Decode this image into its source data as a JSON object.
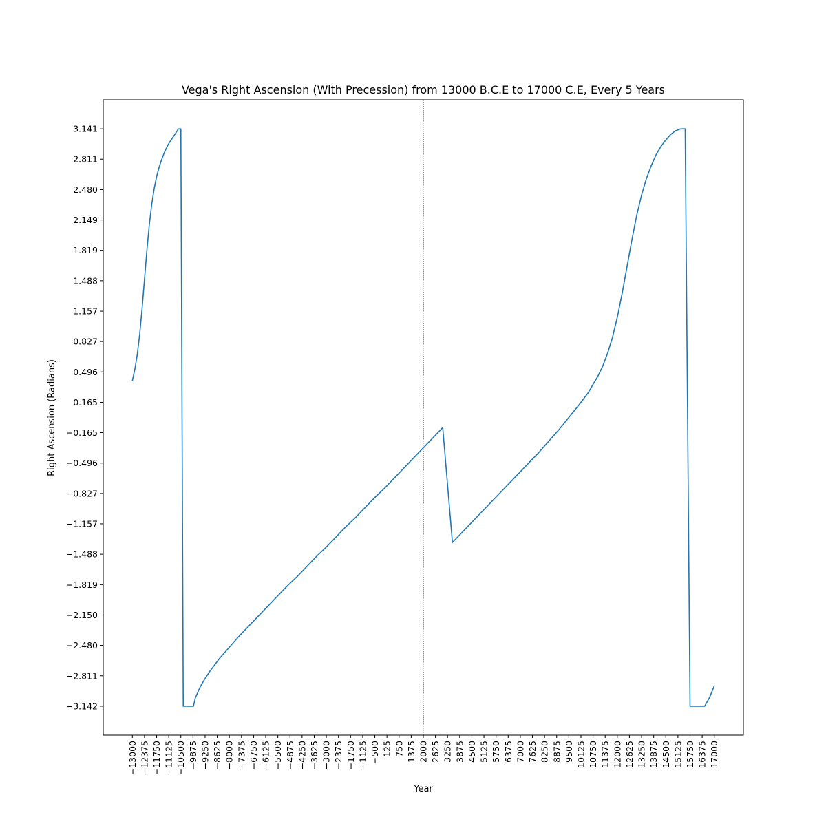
{
  "chart_data": {
    "type": "line",
    "title": "Vega's Right Ascension (With Precession) from 13000 B.C.E to 17000 C.E, Every 5 Years",
    "xlabel": "Year",
    "ylabel": "Right Ascension (Radians)",
    "xlim": [
      -14500,
      18500
    ],
    "ylim": [
      -3.457,
      3.457
    ],
    "grid": false,
    "line_color": "#1f77b4",
    "reference_line": {
      "x": 2000,
      "color": "#000000",
      "style": "dotted"
    },
    "x_ticks": [
      -13000,
      -12375,
      -11750,
      -11125,
      -10500,
      -9875,
      -9250,
      -8625,
      -8000,
      -7375,
      -6750,
      -6125,
      -5500,
      -4875,
      -4250,
      -3625,
      -3000,
      -2375,
      -1750,
      -1125,
      -500,
      125,
      750,
      1375,
      2000,
      2625,
      3250,
      3875,
      4500,
      5125,
      5750,
      6375,
      7000,
      7625,
      8250,
      8875,
      9500,
      10125,
      10750,
      11375,
      12000,
      12625,
      13250,
      13875,
      14500,
      15125,
      15750,
      16375,
      17000
    ],
    "x_tick_labels": [
      "−13000",
      "−12375",
      "−11750",
      "−11125",
      "−10500",
      "−9875",
      "−9250",
      "−8625",
      "−8000",
      "−7375",
      "−6750",
      "−6125",
      "−5500",
      "−4875",
      "−4250",
      "−3625",
      "−3000",
      "−2375",
      "−1750",
      "−1125",
      "−500",
      "125",
      "750",
      "1375",
      "2000",
      "2625",
      "3250",
      "3875",
      "4500",
      "5125",
      "5750",
      "6375",
      "7000",
      "7625",
      "8250",
      "8875",
      "9500",
      "10125",
      "10750",
      "11375",
      "12000",
      "12625",
      "13250",
      "13875",
      "14500",
      "15125",
      "15750",
      "16375",
      "17000"
    ],
    "y_ticks": [
      3.141,
      2.811,
      2.48,
      2.149,
      1.819,
      1.488,
      1.157,
      0.827,
      0.496,
      0.165,
      -0.165,
      -0.496,
      -0.827,
      -1.157,
      -1.488,
      -1.819,
      -2.15,
      -2.48,
      -2.811,
      -3.142
    ],
    "y_tick_labels": [
      "3.141",
      "2.811",
      "2.480",
      "2.149",
      "1.819",
      "1.488",
      "1.157",
      "0.827",
      "0.496",
      "0.165",
      "−0.165",
      "−0.496",
      "−0.827",
      "−1.157",
      "−1.488",
      "−1.819",
      "−2.150",
      "−2.480",
      "−2.811",
      "−3.142"
    ],
    "series": [
      {
        "x": [
          -13000,
          -12875,
          -12750,
          -12625,
          -12500,
          -12375,
          -12250,
          -12125,
          -12000,
          -11875,
          -11750,
          -11625,
          -11500,
          -11375,
          -11250,
          -11125,
          -11000,
          -10875,
          -10750,
          -10625,
          -10500,
          -10375,
          -10250,
          -10125,
          -10000,
          -9850,
          -9850,
          -9750,
          -9500,
          -9250,
          -9000,
          -8750,
          -8500,
          -8000,
          -7500,
          -7000,
          -6500,
          -6000,
          -5500,
          -5000,
          -4500,
          -4000,
          -3500,
          -3000,
          -2500,
          -2000,
          -1500,
          -1000,
          -500,
          0,
          500,
          1000,
          1500,
          2000,
          2500,
          3000,
          3500,
          4000,
          4500,
          5000,
          5500,
          6000,
          6500,
          7000,
          7500,
          8000,
          8500,
          9000,
          9500,
          10000,
          10500,
          10750,
          11000,
          11250,
          11500,
          11750,
          12000,
          12250,
          12500,
          12750,
          13000,
          13250,
          13500,
          13750,
          14000,
          14250,
          14500,
          14750,
          15000,
          15250,
          15500,
          15750,
          16000,
          16250,
          16400,
          16400,
          16500,
          16750,
          17000
        ],
        "y": [
          0.4,
          0.52,
          0.68,
          0.9,
          1.18,
          1.5,
          1.82,
          2.1,
          2.32,
          2.49,
          2.62,
          2.72,
          2.8,
          2.87,
          2.93,
          2.98,
          3.02,
          3.06,
          3.1,
          3.14,
          3.141,
          -3.142,
          -3.142,
          -3.142,
          -3.142,
          -3.142,
          -3.142,
          -3.05,
          -2.93,
          -2.84,
          -2.76,
          -2.69,
          -2.62,
          -2.5,
          -2.38,
          -2.27,
          -2.16,
          -2.05,
          -1.94,
          -1.83,
          -1.73,
          -1.62,
          -1.51,
          -1.41,
          -1.3,
          -1.19,
          -1.09,
          -0.98,
          -0.87,
          -0.77,
          -0.66,
          -0.55,
          -0.44,
          -0.33,
          -0.22,
          -0.11,
          -1.36,
          -1.25,
          -1.14,
          -1.03,
          -0.92,
          -0.81,
          -0.7,
          -0.59,
          -0.48,
          -0.37,
          -0.25,
          -0.13,
          0.0,
          0.13,
          0.27,
          0.36,
          0.45,
          0.56,
          0.7,
          0.87,
          1.09,
          1.35,
          1.64,
          1.93,
          2.2,
          2.42,
          2.6,
          2.74,
          2.86,
          2.95,
          3.02,
          3.08,
          3.12,
          3.14,
          3.141,
          -3.142,
          -3.142,
          -3.142,
          -3.142,
          -3.142,
          -3.142,
          -3.05,
          -2.92
        ]
      }
    ]
  }
}
